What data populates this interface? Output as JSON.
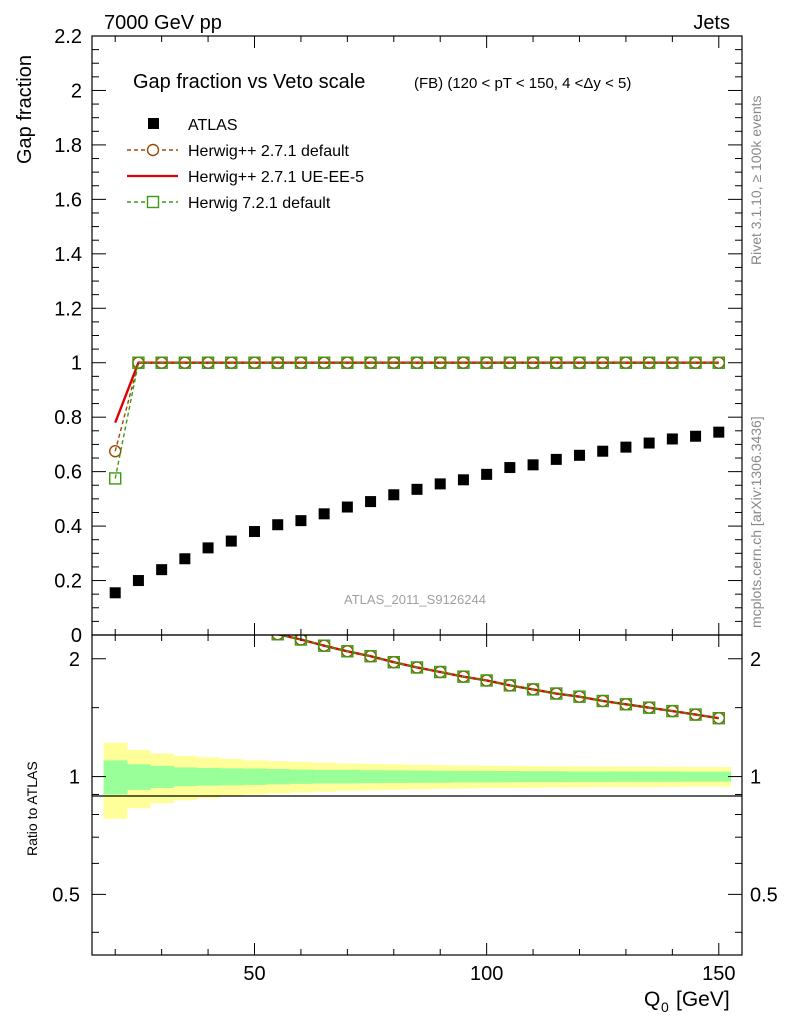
{
  "header": {
    "left": "7000 GeV pp",
    "right": "Jets"
  },
  "chart_data": {
    "type": "scatter",
    "title": "Gap fraction vs Veto scale",
    "subtitle": "(FB) (120 < pT < 150, 4 <Δy < 5)",
    "xlabel": "Q",
    "xlabel_sub": "0",
    "xlabel_unit": "[GeV]",
    "ylabel": "Gap fraction",
    "ratio_ylabel": "Ratio to ATLAS",
    "xlim": [
      15,
      155
    ],
    "ylim": [
      0,
      2.2
    ],
    "ratio_ylim": [
      0.35,
      2.3
    ],
    "ratio_log": true,
    "x_ticks": [
      50,
      100,
      150
    ],
    "y_ticks": [
      0,
      0.2,
      0.4,
      0.6,
      0.8,
      1,
      1.2,
      1.4,
      1.6,
      1.8,
      2,
      2.2
    ],
    "ratio_ticks": [
      0.5,
      1,
      2
    ],
    "x": [
      20,
      25,
      30,
      35,
      40,
      45,
      50,
      55,
      60,
      65,
      70,
      75,
      80,
      85,
      90,
      95,
      100,
      105,
      110,
      115,
      120,
      125,
      130,
      135,
      140,
      145,
      150
    ],
    "series": [
      {
        "name": "ATLAS",
        "role": "data",
        "color": "#000000",
        "marker": "square-filled",
        "values": [
          0.155,
          0.2,
          0.24,
          0.28,
          0.32,
          0.345,
          0.38,
          0.405,
          0.42,
          0.445,
          0.47,
          0.49,
          0.515,
          0.535,
          0.555,
          0.57,
          0.59,
          0.615,
          0.625,
          0.645,
          0.66,
          0.675,
          0.69,
          0.705,
          0.72,
          0.73,
          0.745
        ]
      },
      {
        "name": "Herwig++ 2.7.1 default",
        "color": "#9a4a00",
        "marker": "circle-open",
        "line": "dashed",
        "values": [
          0.675,
          1,
          1,
          1,
          1,
          1,
          1,
          1,
          1,
          1,
          1,
          1,
          1,
          1,
          1,
          1,
          1,
          1,
          1,
          1,
          1,
          1,
          1,
          1,
          1,
          1,
          1
        ],
        "ratio": [
          null,
          null,
          null,
          null,
          null,
          null,
          null,
          2.31,
          2.24,
          2.16,
          2.09,
          2.03,
          1.96,
          1.9,
          1.85,
          1.8,
          1.76,
          1.71,
          1.67,
          1.63,
          1.6,
          1.56,
          1.53,
          1.5,
          1.47,
          1.44,
          1.41
        ]
      },
      {
        "name": "Herwig++ 2.7.1 UE-EE-5",
        "color": "#e00000",
        "marker": "none",
        "line": "solid",
        "values": [
          0.78,
          1,
          1,
          1,
          1,
          1,
          1,
          1,
          1,
          1,
          1,
          1,
          1,
          1,
          1,
          1,
          1,
          1,
          1,
          1,
          1,
          1,
          1,
          1,
          1,
          1,
          1
        ],
        "ratio": [
          null,
          null,
          null,
          null,
          null,
          null,
          null,
          2.31,
          2.24,
          2.16,
          2.09,
          2.03,
          1.96,
          1.9,
          1.85,
          1.8,
          1.76,
          1.71,
          1.67,
          1.63,
          1.6,
          1.56,
          1.53,
          1.5,
          1.47,
          1.44,
          1.41
        ]
      },
      {
        "name": "Herwig 7.2.1 default",
        "color": "#3a9a10",
        "marker": "square-open",
        "line": "dashed",
        "values": [
          0.575,
          1,
          1,
          1,
          1,
          1,
          1,
          1,
          1,
          1,
          1,
          1,
          1,
          1,
          1,
          1,
          1,
          1,
          1,
          1,
          1,
          1,
          1,
          1,
          1,
          1,
          1
        ],
        "ratio": [
          null,
          null,
          null,
          null,
          null,
          null,
          null,
          2.31,
          2.24,
          2.16,
          2.09,
          2.03,
          1.96,
          1.9,
          1.85,
          1.8,
          1.76,
          1.71,
          1.67,
          1.63,
          1.6,
          1.56,
          1.53,
          1.5,
          1.47,
          1.44,
          1.41
        ]
      }
    ],
    "uncertainty_bands": {
      "inner_color": "#99ff99",
      "outer_color": "#ffff99",
      "bins": [
        17.5,
        22.5,
        27.5,
        32.5,
        37.5,
        42.5,
        47.5,
        52.5,
        57.5,
        62.5,
        67.5,
        72.5,
        77.5,
        82.5,
        87.5,
        92.5,
        97.5,
        102.5,
        107.5,
        112.5,
        117.5,
        122.5,
        127.5,
        132.5,
        137.5,
        142.5,
        147.5,
        152.5
      ],
      "inner": [
        0.1,
        0.075,
        0.065,
        0.055,
        0.052,
        0.05,
        0.048,
        0.045,
        0.042,
        0.04,
        0.04,
        0.038,
        0.037,
        0.036,
        0.035,
        0.034,
        0.034,
        0.033,
        0.032,
        0.032,
        0.031,
        0.031,
        0.03,
        0.03,
        0.03,
        0.029,
        0.029
      ],
      "outer": [
        0.22,
        0.17,
        0.145,
        0.13,
        0.12,
        0.11,
        0.1,
        0.095,
        0.09,
        0.085,
        0.08,
        0.078,
        0.075,
        0.072,
        0.07,
        0.068,
        0.066,
        0.065,
        0.064,
        0.063,
        0.062,
        0.061,
        0.06,
        0.06,
        0.059,
        0.058,
        0.058
      ]
    },
    "legend_position": "top-left",
    "grid": false
  },
  "watermark": "ATLAS_2011_S9126244",
  "side_text": {
    "top": "Rivet 3.1.10, ≥ 100k events",
    "bottom": "mcplots.cern.ch [arXiv:1306.3436]"
  }
}
